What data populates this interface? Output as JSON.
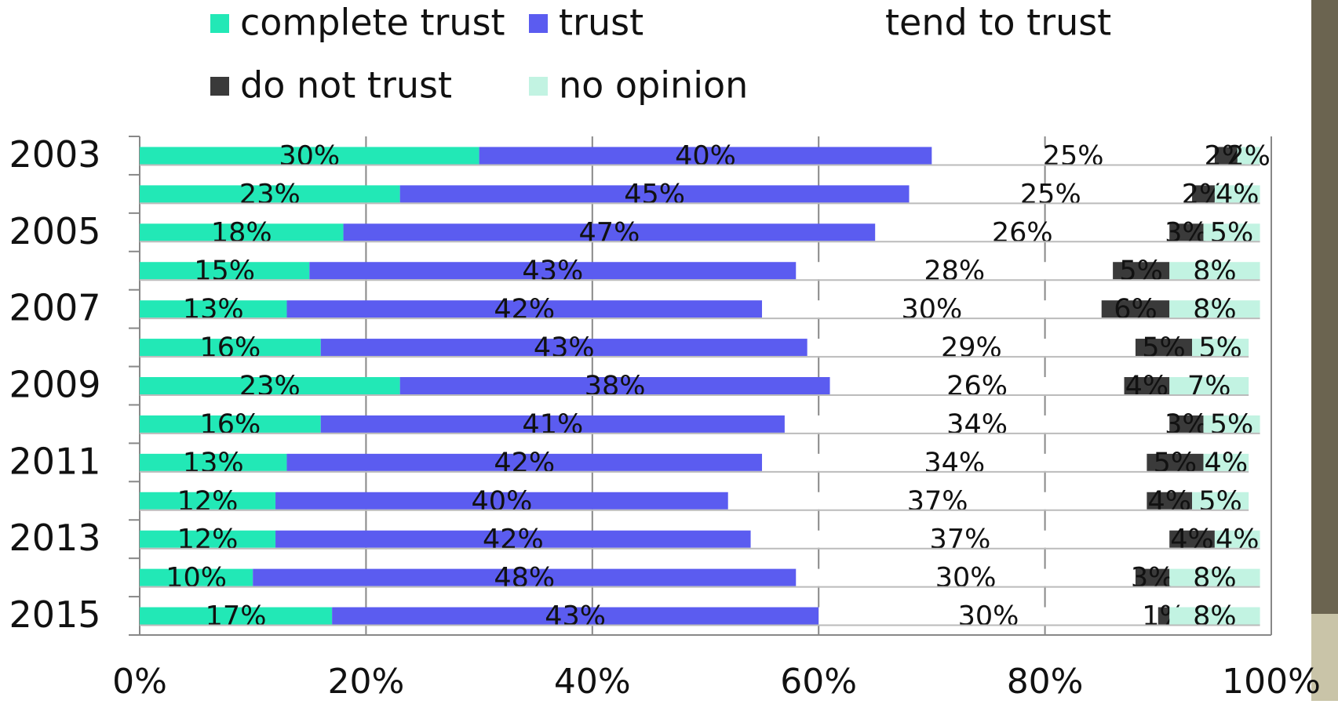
{
  "chart_data": {
    "type": "bar",
    "orientation": "horizontal",
    "stacked": true,
    "categories": [
      "2003",
      null,
      "2005",
      null,
      "2007",
      null,
      "2009",
      null,
      "2011",
      null,
      "2013",
      null,
      "2015"
    ],
    "series": [
      {
        "name": "complete trust",
        "color": "#22e8b6",
        "values": [
          30,
          23,
          18,
          15,
          13,
          16,
          23,
          16,
          13,
          12,
          12,
          10,
          17
        ],
        "value_labels": [
          "30%",
          "23%",
          "18%",
          "15%",
          "13%",
          "16%",
          "23%",
          "16%",
          "13%",
          "12%",
          "12%",
          "10%",
          "17%"
        ]
      },
      {
        "name": "trust",
        "color": "#5b5cf0",
        "values": [
          40,
          45,
          47,
          43,
          42,
          43,
          38,
          41,
          42,
          40,
          42,
          48,
          43
        ],
        "value_labels": [
          "40%",
          "45%",
          "47%",
          "43%",
          "42%",
          "43%",
          "38%",
          "41%",
          "42%",
          "40%",
          "42%",
          "48%",
          "43%"
        ]
      },
      {
        "name": "tend to trust",
        "color": "#ffffff",
        "values": [
          25,
          25,
          26,
          28,
          30,
          29,
          26,
          34,
          34,
          37,
          37,
          30,
          30
        ],
        "value_labels": [
          "25%",
          "25%",
          "26%",
          "28%",
          "30%",
          "29%",
          "26%",
          "34%",
          "34%",
          "37%",
          "37%",
          "30%",
          "30%"
        ]
      },
      {
        "name": "do not trust",
        "color": "#3a3a3a",
        "values": [
          2,
          2,
          3,
          5,
          6,
          5,
          4,
          3,
          5,
          4,
          4,
          3,
          1
        ],
        "value_labels": [
          "2%",
          "2%",
          "3%",
          "5%",
          "6%",
          "5%",
          "4%",
          "3%",
          "5%",
          "4%",
          "4%",
          "3%",
          "1%"
        ]
      },
      {
        "name": "no opinion",
        "color": "#c2f3e2",
        "values": [
          2,
          4,
          5,
          8,
          8,
          5,
          7,
          5,
          4,
          5,
          4,
          8,
          8
        ],
        "value_labels": [
          "2%",
          "4%",
          "5%",
          "8%",
          "8%",
          "5%",
          "7%",
          "5%",
          "4%",
          "5%",
          "4%",
          "8%",
          "8%"
        ]
      }
    ],
    "xlim": [
      0,
      100
    ],
    "xticks": [
      {
        "value": 0,
        "label": "0%"
      },
      {
        "value": 20,
        "label": "20%"
      },
      {
        "value": 40,
        "label": "40%"
      },
      {
        "value": 60,
        "label": "60%"
      },
      {
        "value": 80,
        "label": "80%"
      },
      {
        "value": 100,
        "label": "100%"
      }
    ],
    "grid": true,
    "legend": "top"
  }
}
